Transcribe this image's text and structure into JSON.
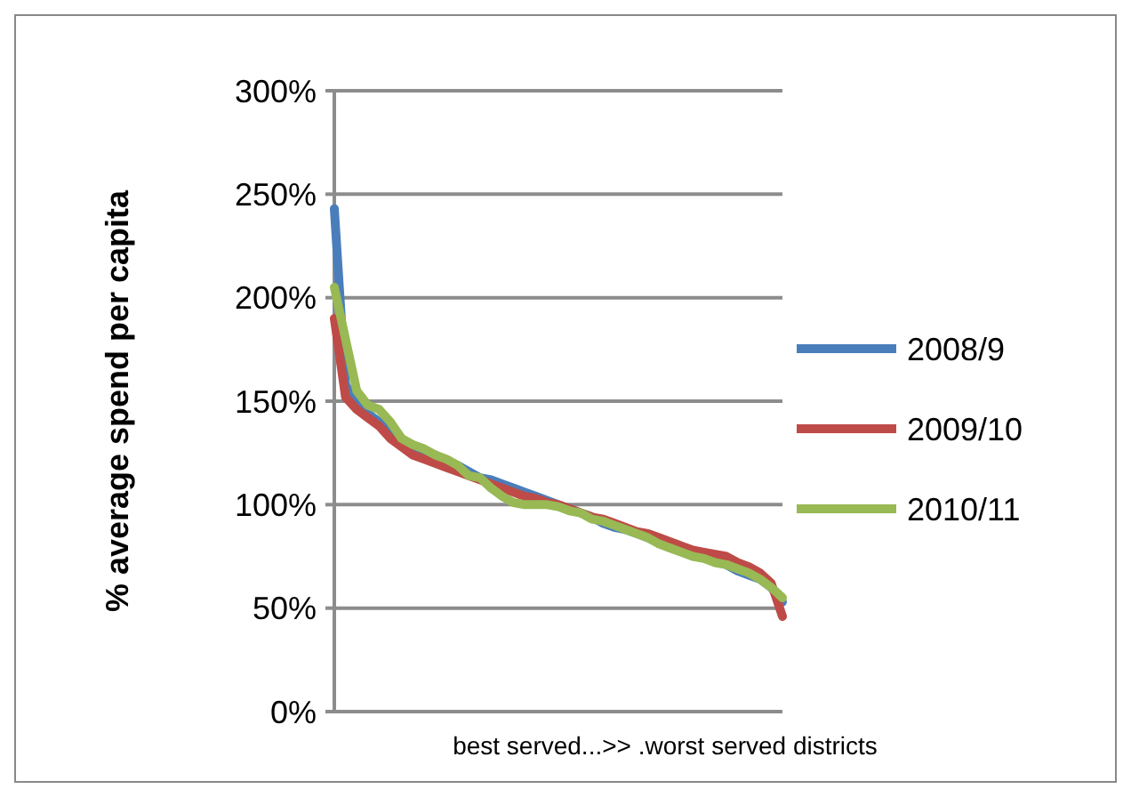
{
  "chart_data": {
    "type": "line",
    "ylabel": "%  average spend per capita",
    "xlabel": "best served...>>  .worst served districts",
    "categories": [
      null,
      null,
      null,
      null,
      null,
      null,
      null,
      null,
      null,
      null,
      null,
      null,
      null,
      null,
      null,
      null,
      null,
      null,
      null,
      null,
      null,
      null,
      null,
      null,
      null,
      null,
      null,
      null,
      null,
      null,
      null,
      null,
      null,
      null,
      null,
      null,
      null,
      null,
      null,
      null,
      null
    ],
    "series": [
      {
        "name": "2008/9",
        "color": "#4a7ebb",
        "values": [
          243,
          158,
          148,
          144,
          140,
          136,
          131,
          128,
          126,
          124,
          121,
          119,
          116,
          113,
          112,
          110,
          108,
          106,
          104,
          102,
          100,
          98,
          96,
          94,
          91,
          89,
          88,
          86,
          84,
          82,
          80,
          78,
          76,
          75,
          73,
          71,
          68,
          66,
          64,
          60,
          53
        ]
      },
      {
        "name": "2009/10",
        "color": "#be4b48",
        "values": [
          190,
          152,
          146,
          142,
          138,
          132,
          128,
          124,
          122,
          120,
          118,
          116,
          114,
          112,
          110,
          108,
          106,
          104,
          103,
          101,
          100,
          98,
          96,
          94,
          93,
          91,
          89,
          87,
          86,
          84,
          82,
          80,
          78,
          77,
          76,
          75,
          72,
          70,
          67,
          62,
          46
        ]
      },
      {
        "name": "2010/11",
        "color": "#98b954",
        "values": [
          205,
          180,
          155,
          148,
          146,
          140,
          132,
          129,
          127,
          124,
          122,
          119,
          114,
          113,
          108,
          104,
          101,
          100,
          100,
          100,
          99,
          97,
          96,
          93,
          92,
          90,
          88,
          86,
          84,
          81,
          79,
          77,
          75,
          74,
          72,
          71,
          69,
          67,
          64,
          60,
          55
        ]
      }
    ],
    "ylim": [
      0,
      300
    ],
    "yticks": [
      {
        "value": 0,
        "label": "0%"
      },
      {
        "value": 50,
        "label": "50%"
      },
      {
        "value": 100,
        "label": "100%"
      },
      {
        "value": 150,
        "label": "150%"
      },
      {
        "value": 200,
        "label": "200%"
      },
      {
        "value": 250,
        "label": "250%"
      },
      {
        "value": 300,
        "label": "300%"
      }
    ],
    "grid": "y",
    "legend": "right",
    "marker": "none",
    "line_style": "solid"
  }
}
